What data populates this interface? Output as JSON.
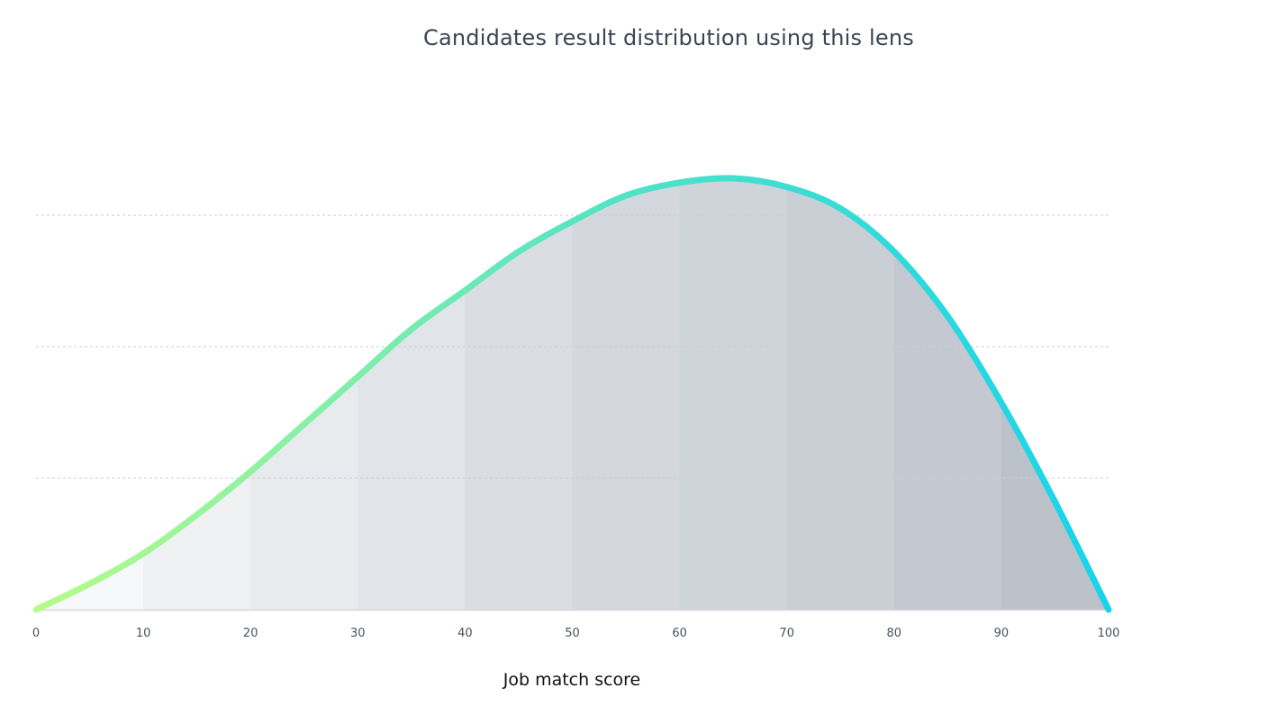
{
  "chart_data": {
    "type": "area",
    "title": "Candidates result distribution using this lens",
    "xlabel": "Job match score",
    "ylabel": "",
    "xlim": [
      0,
      100
    ],
    "x_ticks": [
      "0",
      "10",
      "20",
      "30",
      "40",
      "50",
      "60",
      "70",
      "80",
      "90",
      "100"
    ],
    "y_ticks": [],
    "grid": "horizontal-dashed",
    "series": [
      {
        "x": [
          0,
          5,
          10,
          15,
          20,
          25,
          30,
          35,
          40,
          45,
          50,
          55,
          60,
          65,
          70,
          75,
          80,
          85,
          90,
          95,
          100
        ],
        "values": [
          0,
          0.06,
          0.13,
          0.22,
          0.32,
          0.43,
          0.54,
          0.65,
          0.74,
          0.83,
          0.9,
          0.96,
          0.99,
          1.0,
          0.98,
          0.93,
          0.83,
          0.68,
          0.48,
          0.25,
          0
        ]
      }
    ],
    "colors": {
      "line_start": "#b6fb8a",
      "line_mid": "#4fe3c6",
      "line_end": "#18d3ec",
      "bands": [
        "#f7f8f9",
        "#eff1f3",
        "#e8ebee",
        "#e1e4e8",
        "#dadee3",
        "#d4d8de",
        "#cfd3da",
        "#cacfd6",
        "#c4c9d1",
        "#bcc2ca"
      ]
    }
  }
}
